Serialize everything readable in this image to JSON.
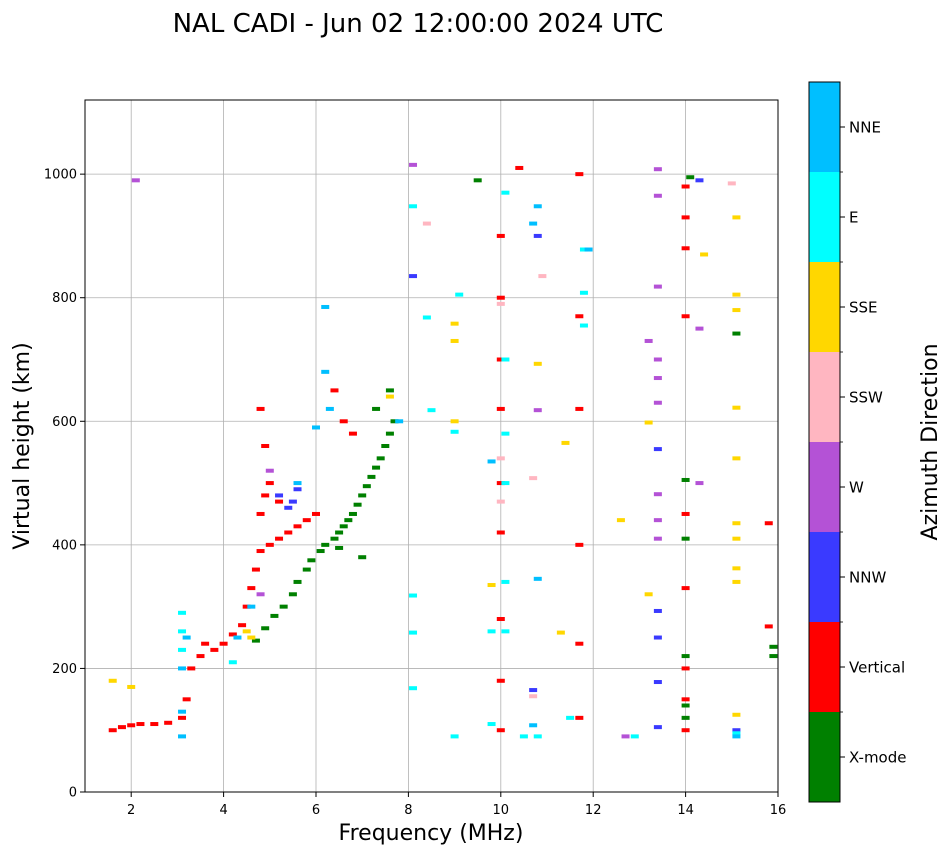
{
  "chart_data": {
    "type": "scatter",
    "title": "NAL CADI - Jun 02 12:00:00 2024 UTC",
    "xlabel": "Frequency (MHz)",
    "ylabel": "Virtual height (km)",
    "xlim": [
      1,
      16
    ],
    "ylim": [
      0,
      1120
    ],
    "xticks": [
      2,
      4,
      6,
      8,
      10,
      12,
      14,
      16
    ],
    "yticks": [
      0,
      200,
      400,
      600,
      800,
      1000
    ],
    "grid": true,
    "colorbar": {
      "label": "Azimuth Direction",
      "categories": [
        {
          "name": "X-mode",
          "color": "#008000"
        },
        {
          "name": "Vertical",
          "color": "#ff0000"
        },
        {
          "name": "NNW",
          "color": "#3a3aff"
        },
        {
          "name": "W",
          "color": "#b452d6"
        },
        {
          "name": "SSW",
          "color": "#ffb6c1"
        },
        {
          "name": "SSE",
          "color": "#ffd700"
        },
        {
          "name": "E",
          "color": "#00ffff"
        },
        {
          "name": "NNE",
          "color": "#00bfff"
        }
      ]
    },
    "series": [
      {
        "name": "X-mode",
        "points": [
          [
            4.7,
            245
          ],
          [
            4.9,
            265
          ],
          [
            5.1,
            285
          ],
          [
            5.3,
            300
          ],
          [
            5.5,
            320
          ],
          [
            5.6,
            340
          ],
          [
            5.8,
            360
          ],
          [
            5.9,
            375
          ],
          [
            6.1,
            390
          ],
          [
            6.2,
            400
          ],
          [
            6.4,
            410
          ],
          [
            6.5,
            420
          ],
          [
            6.6,
            430
          ],
          [
            6.7,
            440
          ],
          [
            6.8,
            450
          ],
          [
            6.9,
            465
          ],
          [
            7.0,
            480
          ],
          [
            7.1,
            495
          ],
          [
            7.2,
            510
          ],
          [
            7.3,
            525
          ],
          [
            7.4,
            540
          ],
          [
            7.5,
            560
          ],
          [
            7.6,
            580
          ],
          [
            7.7,
            600
          ],
          [
            7.3,
            620
          ],
          [
            7.6,
            650
          ],
          [
            7.0,
            380
          ],
          [
            6.5,
            395
          ],
          [
            9.5,
            990
          ],
          [
            14.1,
            995
          ],
          [
            14.0,
            120
          ],
          [
            14.0,
            140
          ],
          [
            14.0,
            220
          ],
          [
            14.0,
            410
          ],
          [
            14.0,
            505
          ],
          [
            15.1,
            742
          ],
          [
            15.9,
            220
          ],
          [
            15.9,
            235
          ]
        ]
      },
      {
        "name": "Vertical",
        "points": [
          [
            1.6,
            100
          ],
          [
            1.8,
            105
          ],
          [
            2.0,
            108
          ],
          [
            2.2,
            110
          ],
          [
            2.5,
            110
          ],
          [
            2.8,
            112
          ],
          [
            3.1,
            120
          ],
          [
            3.2,
            150
          ],
          [
            3.3,
            200
          ],
          [
            3.5,
            220
          ],
          [
            3.6,
            240
          ],
          [
            3.8,
            230
          ],
          [
            4.0,
            240
          ],
          [
            4.2,
            255
          ],
          [
            4.4,
            270
          ],
          [
            4.5,
            300
          ],
          [
            4.6,
            330
          ],
          [
            4.7,
            360
          ],
          [
            4.8,
            390
          ],
          [
            5.0,
            400
          ],
          [
            5.2,
            410
          ],
          [
            5.4,
            420
          ],
          [
            5.6,
            430
          ],
          [
            5.8,
            440
          ],
          [
            6.0,
            450
          ],
          [
            4.8,
            450
          ],
          [
            5.0,
            500
          ],
          [
            4.9,
            560
          ],
          [
            4.8,
            620
          ],
          [
            6.4,
            650
          ],
          [
            6.6,
            600
          ],
          [
            6.8,
            580
          ],
          [
            5.2,
            470
          ],
          [
            4.9,
            480
          ],
          [
            10.0,
            100
          ],
          [
            10.0,
            180
          ],
          [
            10.0,
            280
          ],
          [
            10.0,
            420
          ],
          [
            10.0,
            500
          ],
          [
            10.0,
            620
          ],
          [
            10.0,
            700
          ],
          [
            10.0,
            800
          ],
          [
            10.0,
            900
          ],
          [
            10.4,
            1010
          ],
          [
            11.7,
            120
          ],
          [
            11.7,
            240
          ],
          [
            11.7,
            400
          ],
          [
            11.7,
            620
          ],
          [
            11.7,
            770
          ],
          [
            11.7,
            1000
          ],
          [
            14.0,
            100
          ],
          [
            14.0,
            150
          ],
          [
            14.0,
            200
          ],
          [
            14.0,
            330
          ],
          [
            14.0,
            450
          ],
          [
            14.0,
            770
          ],
          [
            14.0,
            880
          ],
          [
            14.0,
            930
          ],
          [
            14.0,
            980
          ],
          [
            15.8,
            435
          ],
          [
            15.8,
            268
          ]
        ]
      },
      {
        "name": "NNW",
        "points": [
          [
            5.5,
            470
          ],
          [
            5.6,
            490
          ],
          [
            5.2,
            480
          ],
          [
            5.4,
            460
          ],
          [
            10.7,
            165
          ],
          [
            13.4,
            105
          ],
          [
            13.4,
            178
          ],
          [
            13.4,
            250
          ],
          [
            13.4,
            293
          ],
          [
            13.4,
            555
          ],
          [
            14.3,
            990
          ],
          [
            15.1,
            100
          ],
          [
            8.1,
            835
          ],
          [
            10.8,
            900
          ]
        ]
      },
      {
        "name": "W",
        "points": [
          [
            5.0,
            520
          ],
          [
            4.8,
            320
          ],
          [
            2.1,
            990
          ],
          [
            8.1,
            1015
          ],
          [
            10.8,
            618
          ],
          [
            13.2,
            730
          ],
          [
            13.4,
            410
          ],
          [
            13.4,
            440
          ],
          [
            13.4,
            482
          ],
          [
            13.4,
            630
          ],
          [
            13.4,
            670
          ],
          [
            13.4,
            700
          ],
          [
            13.4,
            818
          ],
          [
            13.4,
            965
          ],
          [
            13.4,
            1008
          ],
          [
            14.3,
            500
          ],
          [
            14.3,
            750
          ],
          [
            12.7,
            90
          ]
        ]
      },
      {
        "name": "SSW",
        "points": [
          [
            10.0,
            470
          ],
          [
            10.7,
            508
          ],
          [
            10.0,
            540
          ],
          [
            10.9,
            835
          ],
          [
            8.4,
            920
          ],
          [
            15.0,
            985
          ],
          [
            10.0,
            790
          ],
          [
            10.7,
            155
          ]
        ]
      },
      {
        "name": "SSE",
        "points": [
          [
            1.6,
            180
          ],
          [
            2.0,
            170
          ],
          [
            4.5,
            260
          ],
          [
            4.6,
            250
          ],
          [
            7.6,
            640
          ],
          [
            9.0,
            600
          ],
          [
            9.0,
            730
          ],
          [
            9.0,
            758
          ],
          [
            10.8,
            693
          ],
          [
            11.4,
            565
          ],
          [
            11.3,
            258
          ],
          [
            12.6,
            440
          ],
          [
            13.2,
            320
          ],
          [
            13.2,
            598
          ],
          [
            14.4,
            870
          ],
          [
            15.1,
            125
          ],
          [
            15.1,
            340
          ],
          [
            15.1,
            362
          ],
          [
            15.1,
            410
          ],
          [
            15.1,
            435
          ],
          [
            15.1,
            540
          ],
          [
            15.1,
            622
          ],
          [
            15.1,
            780
          ],
          [
            15.1,
            805
          ],
          [
            15.1,
            930
          ],
          [
            9.8,
            335
          ]
        ]
      },
      {
        "name": "E",
        "points": [
          [
            3.1,
            290
          ],
          [
            3.1,
            260
          ],
          [
            3.1,
            230
          ],
          [
            4.2,
            210
          ],
          [
            8.1,
            168
          ],
          [
            8.1,
            258
          ],
          [
            8.1,
            318
          ],
          [
            8.5,
            618
          ],
          [
            8.4,
            768
          ],
          [
            8.1,
            948
          ],
          [
            9.0,
            583
          ],
          [
            9.1,
            805
          ],
          [
            9.0,
            90
          ],
          [
            9.8,
            110
          ],
          [
            9.8,
            260
          ],
          [
            10.1,
            260
          ],
          [
            10.1,
            340
          ],
          [
            10.1,
            500
          ],
          [
            10.1,
            580
          ],
          [
            10.1,
            700
          ],
          [
            10.1,
            970
          ],
          [
            10.5,
            90
          ],
          [
            10.8,
            90
          ],
          [
            11.5,
            120
          ],
          [
            11.8,
            755
          ],
          [
            11.8,
            808
          ],
          [
            11.8,
            878
          ],
          [
            12.9,
            90
          ],
          [
            15.1,
            95
          ]
        ]
      },
      {
        "name": "NNE",
        "points": [
          [
            3.1,
            90
          ],
          [
            3.1,
            130
          ],
          [
            3.1,
            200
          ],
          [
            3.2,
            250
          ],
          [
            4.3,
            250
          ],
          [
            4.6,
            300
          ],
          [
            5.6,
            500
          ],
          [
            6.0,
            590
          ],
          [
            6.2,
            680
          ],
          [
            6.2,
            785
          ],
          [
            6.3,
            620
          ],
          [
            7.8,
            600
          ],
          [
            9.8,
            535
          ],
          [
            10.7,
            920
          ],
          [
            10.8,
            948
          ],
          [
            11.9,
            878
          ],
          [
            10.8,
            345
          ],
          [
            10.7,
            108
          ],
          [
            15.1,
            90
          ]
        ]
      }
    ]
  }
}
